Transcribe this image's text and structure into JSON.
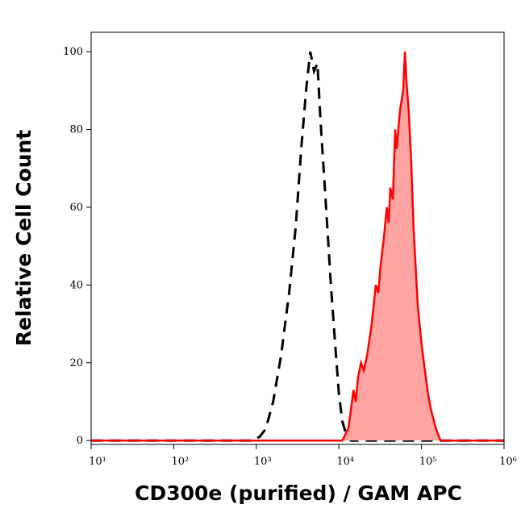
{
  "chart_data": {
    "type": "histogram-overlay",
    "xlabel": "CD300e (purified) / GAM APC",
    "ylabel": "Relative Cell Count",
    "log_x": true,
    "xlim": [
      10,
      1000000
    ],
    "ylim": [
      -1,
      105
    ],
    "xticks": [
      {
        "value": 10,
        "label": "10¹"
      },
      {
        "value": 100,
        "label": "10²"
      },
      {
        "value": 1000,
        "label": "10³"
      },
      {
        "value": 10000,
        "label": "10⁴"
      },
      {
        "value": 100000,
        "label": "10⁵"
      },
      {
        "value": 1000000,
        "label": "10⁶"
      }
    ],
    "yticks": [
      0,
      20,
      40,
      60,
      80,
      100
    ],
    "series": [
      {
        "color": "#000000",
        "dashed": true,
        "filled": false,
        "x": [
          10,
          100,
          900,
          1100,
          1300,
          1600,
          2000,
          2500,
          3000,
          3500,
          4000,
          4500,
          5000,
          5500,
          6000,
          7000,
          8000,
          9000,
          10000,
          11000,
          12500,
          14000,
          100000,
          1000000
        ],
        "values": [
          0,
          0,
          0,
          1,
          3,
          10,
          22,
          38,
          55,
          75,
          90,
          100,
          95,
          97,
          82,
          60,
          40,
          25,
          12,
          5,
          1,
          0,
          0,
          0
        ]
      },
      {
        "color": "#ff0000",
        "fill": "#ffa3a3",
        "dashed": false,
        "filled": true,
        "x": [
          10,
          11000,
          13000,
          14000,
          15000,
          16000,
          17000,
          18500,
          20000,
          22000,
          25000,
          28000,
          30000,
          32000,
          35000,
          38000,
          40000,
          42000,
          45000,
          48000,
          50000,
          55000,
          60000,
          63000,
          66000,
          70000,
          75000,
          80000,
          90000,
          100000,
          110000,
          120000,
          130000,
          150000,
          170000,
          1000000
        ],
        "values": [
          0,
          0,
          3,
          8,
          13,
          10,
          16,
          20,
          18,
          22,
          30,
          40,
          38,
          45,
          52,
          60,
          56,
          65,
          62,
          80,
          75,
          85,
          90,
          100,
          92,
          85,
          72,
          55,
          35,
          25,
          18,
          12,
          8,
          3,
          0,
          0
        ]
      }
    ]
  }
}
